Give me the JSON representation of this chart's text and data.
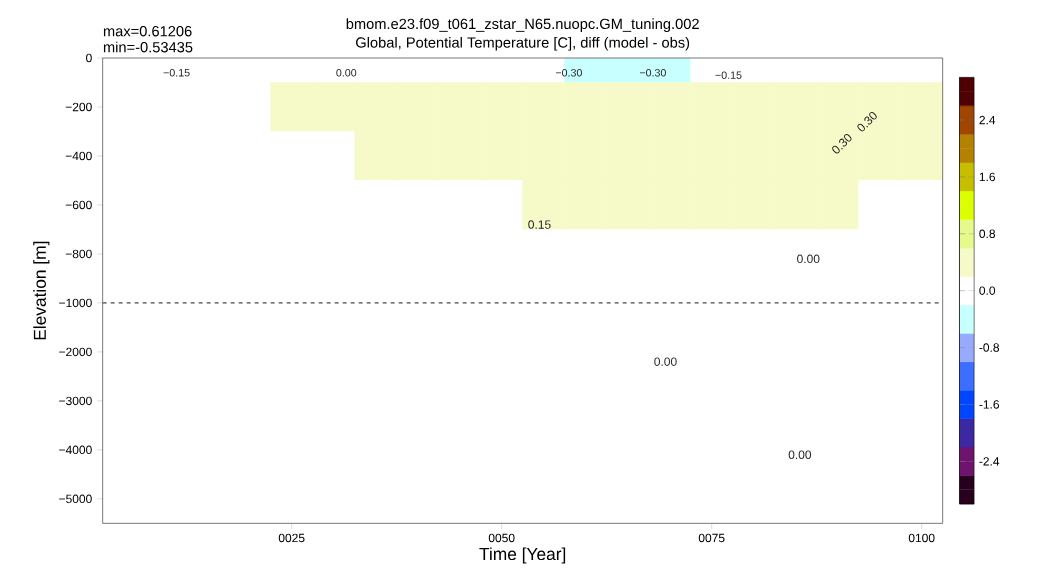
{
  "chart_data": {
    "type": "heatmap",
    "title": "bmom.e23.f09_t061_zstar_N65.nuopc.GM_tuning.002",
    "subtitle": "Global, Potential Temperature [C], diff (model - obs)",
    "xlabel": "Time [Year]",
    "ylabel": "Elevation [m]",
    "categories": [
      null,
      null,
      null,
      null,
      "0025",
      null,
      null,
      null,
      null,
      "0050",
      null,
      null,
      null,
      null,
      "0075",
      null,
      null,
      null,
      null,
      "0100"
    ],
    "y_categories": [
      "0",
      "−200",
      "−400",
      "−600",
      "−800",
      "−1000",
      "−2000",
      "−3000",
      "−4000",
      "−5000"
    ],
    "cells": [
      [
        -0.1,
        -0.1,
        -0.1,
        -0.1,
        -0.1,
        -0.1,
        -0.1,
        -0.1,
        -0.1,
        -0.1,
        -0.1,
        -0.3,
        -0.3,
        -0.3,
        -0.1,
        -0.1,
        -0.1,
        -0.1,
        -0.1,
        -0.1
      ],
      [
        0.1,
        0.1,
        0.1,
        0.1,
        0.3,
        0.3,
        0.3,
        0.3,
        0.3,
        0.3,
        0.3,
        0.3,
        0.3,
        0.3,
        0.3,
        0.3,
        0.3,
        0.3,
        0.3,
        0.3
      ],
      [
        0.1,
        0.1,
        0.1,
        0.1,
        0.1,
        0.1,
        0.3,
        0.3,
        0.3,
        0.3,
        0.3,
        0.3,
        0.3,
        0.3,
        0.3,
        0.3,
        0.3,
        0.3,
        0.3,
        0.3
      ],
      [
        -0.1,
        0.1,
        0.1,
        0.1,
        0.1,
        0.1,
        0.1,
        0.1,
        0.1,
        0.1,
        0.3,
        0.3,
        0.3,
        0.3,
        0.3,
        0.3,
        0.3,
        0.3,
        0.1,
        0.1
      ],
      [
        -0.1,
        -0.1,
        -0.1,
        -0.1,
        0.1,
        0.1,
        0.1,
        0.1,
        0.1,
        0.1,
        0.1,
        0.1,
        0.1,
        0.1,
        0.1,
        0.1,
        0.1,
        0.1,
        0.1,
        0.1
      ],
      [
        -0.1,
        -0.1,
        -0.1,
        -0.1,
        -0.1,
        -0.1,
        -0.1,
        -0.1,
        -0.1,
        -0.1,
        -0.1,
        -0.1,
        -0.1,
        -0.1,
        -0.1,
        -0.1,
        -0.1,
        -0.1,
        -0.1,
        -0.1
      ],
      [
        -0.1,
        -0.1,
        -0.1,
        -0.1,
        -0.1,
        -0.1,
        -0.1,
        -0.1,
        -0.1,
        -0.1,
        -0.1,
        -0.1,
        -0.1,
        -0.1,
        -0.1,
        -0.1,
        -0.1,
        -0.1,
        -0.1,
        -0.1
      ],
      [
        0.1,
        0.1,
        0.1,
        0.1,
        0.1,
        0.1,
        0.1,
        0.1,
        0.1,
        0.1,
        0.1,
        0.1,
        0.1,
        0.1,
        0.1,
        0.1,
        0.1,
        0.1,
        0.1,
        0.1
      ],
      [
        0.1,
        0.1,
        0.1,
        0.1,
        0.1,
        0.1,
        0.1,
        0.1,
        0.1,
        0.1,
        0.1,
        0.1,
        0.1,
        0.1,
        0.1,
        0.1,
        0.1,
        0.1,
        0.1,
        0.1
      ],
      [
        -0.1,
        -0.1,
        -0.1,
        -0.1,
        -0.1,
        -0.1,
        -0.1,
        -0.1,
        -0.1,
        -0.1,
        -0.1,
        -0.1,
        -0.1,
        -0.1,
        -0.1,
        -0.1,
        -0.1,
        -0.1,
        -0.1,
        -0.1
      ]
    ],
    "clim": [
      -3,
      3
    ],
    "cticks": [
      -2.4,
      -1.6,
      -0.8,
      {
        "value": 0,
        "label": "0.0"
      },
      0.8,
      1.6,
      2.4
    ],
    "ref_lines": [
      {
        "axis": "y",
        "value": "−1000",
        "line_style": "dashed",
        "color": "#000000"
      }
    ],
    "annotations": [
      "max=0.61206",
      "min=-0.53435",
      "0.15",
      "0.00",
      "0.00",
      "0.00",
      "0.30",
      "0.30",
      "−0.15",
      "0.00",
      "−0.30",
      "−0.30",
      "−0.15"
    ]
  }
}
